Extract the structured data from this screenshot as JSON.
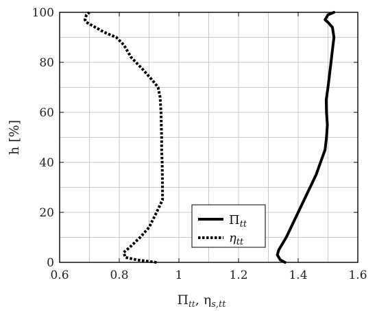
{
  "chart_data": {
    "type": "line",
    "xlabel": "Π",
    "xlabel_sub1": "tt",
    "xlabel_sep": ", η",
    "xlabel_sub2": "s,tt",
    "ylabel": "h [%]",
    "xlim": [
      0.6,
      1.6
    ],
    "ylim": [
      0,
      100
    ],
    "xticks": [
      0.6,
      0.8,
      1,
      1.2,
      1.4,
      1.6
    ],
    "xtick_labels": [
      "0.6",
      "0.8",
      "1",
      "1.2",
      "1.4",
      "1.6"
    ],
    "yticks": [
      0,
      20,
      40,
      60,
      80,
      100
    ],
    "ytick_labels": [
      "0",
      "20",
      "40",
      "60",
      "80",
      "100"
    ],
    "xgrid_step": 0.1,
    "ygrid_step": 10,
    "grid": true,
    "legend_position": "bottom-center",
    "series": [
      {
        "name": "Π",
        "name_sub": "tt",
        "style": "solid",
        "color": "#000000",
        "x": [
          1.356,
          1.34,
          1.33,
          1.335,
          1.345,
          1.36,
          1.38,
          1.4,
          1.42,
          1.44,
          1.46,
          1.475,
          1.49,
          1.495,
          1.498,
          1.495,
          1.494,
          1.5,
          1.505,
          1.51,
          1.515,
          1.52,
          1.515,
          1.5,
          1.49,
          1.5,
          1.52
        ],
        "y": [
          0,
          1,
          3,
          5,
          7,
          10,
          15,
          20,
          25,
          30,
          35,
          40,
          45,
          50,
          55,
          60,
          65,
          70,
          75,
          80,
          85,
          90,
          94,
          96,
          97,
          99,
          100
        ]
      },
      {
        "name": "η",
        "name_sub": "tt",
        "style": "dotted",
        "color": "#000000",
        "x": [
          0.925,
          0.86,
          0.82,
          0.815,
          0.835,
          0.87,
          0.9,
          0.925,
          0.945,
          0.945,
          0.944,
          0.942,
          0.942,
          0.941,
          0.94,
          0.937,
          0.93,
          0.91,
          0.88,
          0.84,
          0.815,
          0.79,
          0.75,
          0.72,
          0.69,
          0.685,
          0.69,
          0.7
        ],
        "y": [
          0,
          1,
          2,
          4,
          6,
          10,
          14,
          20,
          25,
          30,
          40,
          45,
          50,
          55,
          60,
          66,
          70,
          73,
          77,
          82,
          87,
          90,
          92,
          94,
          96,
          97,
          99,
          100
        ]
      }
    ]
  }
}
